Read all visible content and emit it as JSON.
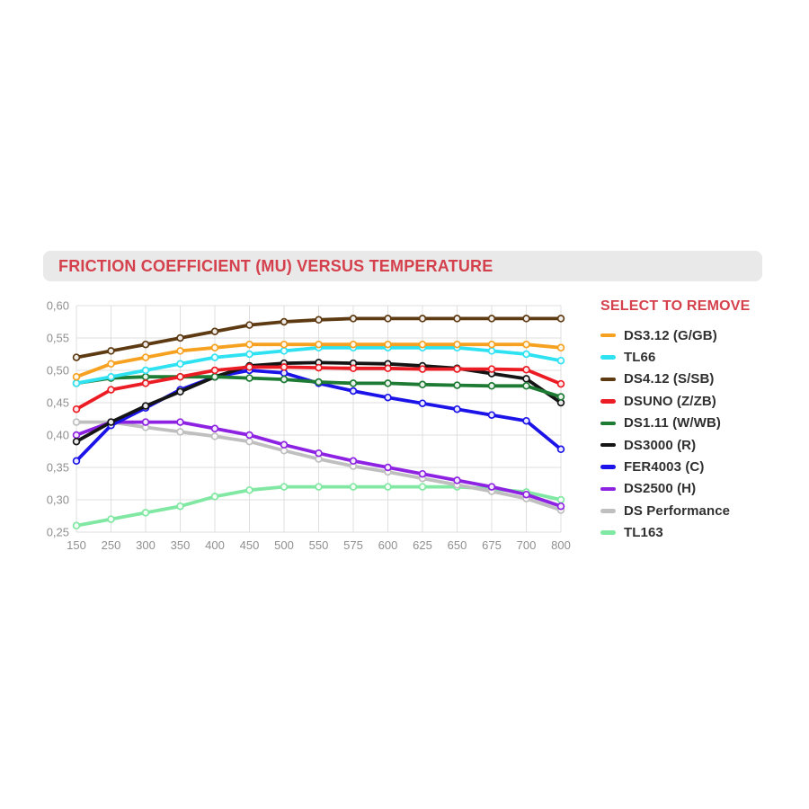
{
  "header": {
    "title": "FRICTION COEFFICIENT (MU) VERSUS TEMPERATURE",
    "bar_color": "#E9E9E9",
    "text_color": "#D4414D"
  },
  "legend": {
    "title": "SELECT TO REMOVE",
    "title_color": "#D4414D",
    "items": [
      {
        "label": "DS3.12 (G/GB)",
        "color": "#F6A120"
      },
      {
        "label": "TL66",
        "color": "#2FE2F2"
      },
      {
        "label": "DS4.12 (S/SB)",
        "color": "#5E3A12"
      },
      {
        "label": "DSUNO (Z/ZB)",
        "color": "#EC1C24"
      },
      {
        "label": "DS1.11 (W/WB)",
        "color": "#1E7B33"
      },
      {
        "label": "DS3000 (R)",
        "color": "#151515"
      },
      {
        "label": "FER4003 (C)",
        "color": "#1B13E8"
      },
      {
        "label": "DS2500 (H)",
        "color": "#8E22E2"
      },
      {
        "label": "DS Performance",
        "color": "#BFBFBF"
      },
      {
        "label": "TL163",
        "color": "#80E8A2"
      }
    ]
  },
  "chart_data": {
    "type": "line",
    "title": "FRICTION COEFFICIENT (MU) VERSUS TEMPERATURE",
    "xlabel": "",
    "ylabel": "",
    "x_scale": "categorical",
    "categories": [
      150,
      250,
      300,
      350,
      400,
      450,
      500,
      550,
      575,
      600,
      625,
      650,
      675,
      700,
      800
    ],
    "x_tick_labels": [
      "150",
      "250",
      "300",
      "350",
      "400",
      "450",
      "500",
      "550",
      "575",
      "600",
      "625",
      "650",
      "675",
      "700",
      "800"
    ],
    "y_tick_labels": [
      "0,60",
      "0,55",
      "0,50",
      "0,45",
      "0,40",
      "0,35",
      "0,30",
      "0,25"
    ],
    "ylim": [
      0.25,
      0.6
    ],
    "y_tick_step": 0.05,
    "decimal_separator": ",",
    "grid": true,
    "grid_color": "#DFDFDF",
    "tick_color": "#8F8F8F",
    "legend_position": "right",
    "marker": "open-circle",
    "series": [
      {
        "name": "DS3.12 (G/GB)",
        "color": "#F6A120",
        "values": [
          0.49,
          0.51,
          0.52,
          0.53,
          0.535,
          0.54,
          0.54,
          0.54,
          0.54,
          0.54,
          0.54,
          0.54,
          0.54,
          0.54,
          0.535
        ]
      },
      {
        "name": "TL66",
        "color": "#2FE2F2",
        "values": [
          0.48,
          0.49,
          0.5,
          0.51,
          0.52,
          0.525,
          0.53,
          0.535,
          0.535,
          0.535,
          0.535,
          0.535,
          0.53,
          0.525,
          0.515
        ]
      },
      {
        "name": "DS4.12 (S/SB)",
        "color": "#5E3A12",
        "values": [
          0.52,
          0.53,
          0.54,
          0.55,
          0.56,
          0.57,
          0.575,
          0.578,
          0.58,
          0.58,
          0.58,
          0.58,
          0.58,
          0.58,
          0.58
        ]
      },
      {
        "name": "DSUNO (Z/ZB)",
        "color": "#EC1C24",
        "values": [
          0.44,
          0.47,
          0.48,
          0.49,
          0.5,
          0.505,
          0.505,
          0.504,
          0.503,
          0.503,
          0.502,
          0.502,
          0.502,
          0.501,
          0.479
        ]
      },
      {
        "name": "DS1.11 (W/WB)",
        "color": "#1E7B33",
        "values": [
          0.48,
          0.488,
          0.49,
          0.49,
          0.49,
          0.488,
          0.486,
          0.482,
          0.48,
          0.48,
          0.478,
          0.477,
          0.476,
          0.476,
          0.459
        ]
      },
      {
        "name": "DS3000 (R)",
        "color": "#151515",
        "values": [
          0.39,
          0.42,
          0.445,
          0.467,
          0.49,
          0.507,
          0.511,
          0.512,
          0.511,
          0.51,
          0.507,
          0.503,
          0.495,
          0.487,
          0.45
        ]
      },
      {
        "name": "FER4003 (C)",
        "color": "#1B13E8",
        "values": [
          0.36,
          0.415,
          0.442,
          0.47,
          0.49,
          0.5,
          0.496,
          0.48,
          0.468,
          0.458,
          0.449,
          0.44,
          0.431,
          0.422,
          0.378
        ]
      },
      {
        "name": "DS2500 (H)",
        "color": "#8E22E2",
        "values": [
          0.4,
          0.42,
          0.42,
          0.42,
          0.41,
          0.4,
          0.385,
          0.372,
          0.36,
          0.35,
          0.34,
          0.33,
          0.32,
          0.308,
          0.29
        ]
      },
      {
        "name": "DS Performance",
        "color": "#BFBFBF",
        "values": [
          0.42,
          0.42,
          0.412,
          0.405,
          0.398,
          0.39,
          0.376,
          0.363,
          0.352,
          0.343,
          0.333,
          0.323,
          0.313,
          0.302,
          0.284
        ]
      },
      {
        "name": "TL163",
        "color": "#80E8A2",
        "values": [
          0.26,
          0.27,
          0.28,
          0.29,
          0.305,
          0.315,
          0.32,
          0.32,
          0.32,
          0.32,
          0.32,
          0.32,
          0.317,
          0.312,
          0.3
        ]
      }
    ]
  }
}
